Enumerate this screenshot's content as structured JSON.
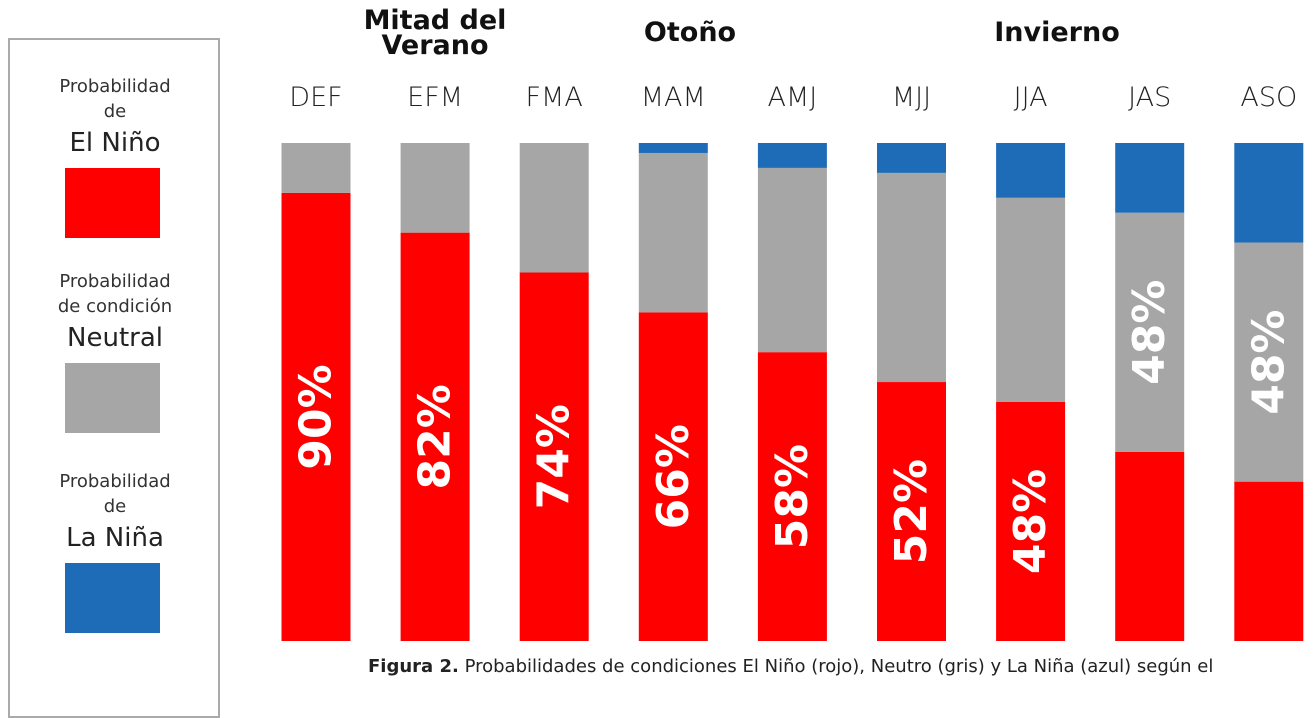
{
  "chart_data": {
    "type": "bar",
    "stacked": true,
    "categories": [
      "DEF",
      "EFM",
      "FMA",
      "MAM",
      "AMJ",
      "MJJ",
      "JJA",
      "JAS",
      "ASO"
    ],
    "ylim": [
      0,
      100
    ],
    "series": [
      {
        "name": "El Niño",
        "color": "#ff0000",
        "values": [
          90,
          82,
          74,
          66,
          58,
          52,
          48,
          38,
          32
        ],
        "value_labels": [
          "90%",
          "82%",
          "74%",
          "66%",
          "58%",
          "52%",
          "48%",
          null,
          null
        ]
      },
      {
        "name": "Neutral",
        "color": "#a6a6a6",
        "values": [
          10,
          18,
          26,
          32,
          37,
          42,
          41,
          48,
          48
        ],
        "value_labels": [
          null,
          null,
          null,
          null,
          null,
          null,
          null,
          "48%",
          "48%"
        ]
      },
      {
        "name": "La Niña",
        "color": "#1e6bb8",
        "values": [
          0,
          0,
          0,
          2,
          5,
          6,
          11,
          14,
          20
        ],
        "value_labels": [
          null,
          null,
          null,
          null,
          null,
          null,
          null,
          null,
          null
        ]
      }
    ],
    "legend_lines": [
      [
        "Probabilidad",
        "de"
      ],
      [
        "Probabilidad",
        "de condición"
      ],
      [
        "Probabilidad",
        "de"
      ]
    ],
    "annotations": [
      "Mitad del Verano",
      "Otoño",
      "Invierno"
    ],
    "caption": {
      "label": "Figura 2.",
      "text": "Probabilidades de condiciones El Niño (rojo), Neutro (gris) y La Niña (azul) según el"
    }
  }
}
